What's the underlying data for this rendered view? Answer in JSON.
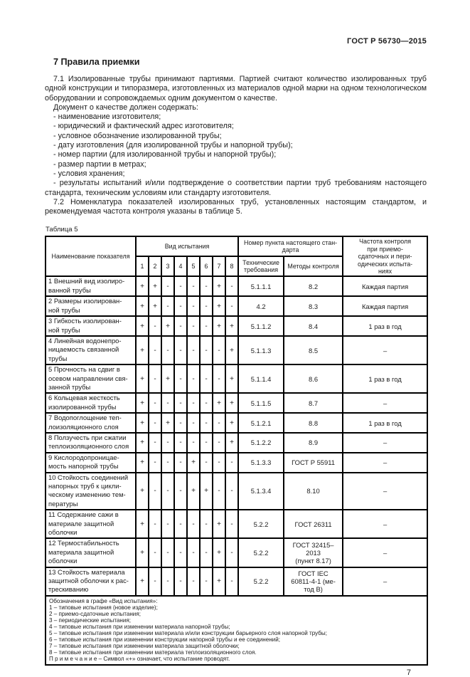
{
  "page": {
    "header_right": "ГОСТ Р 56730—2015",
    "page_number": "7"
  },
  "section": {
    "title": "7 Правила приемки",
    "para_71": "7.1 Изолированные трубы принимают партиями. Партией считают количество изолированных труб одной конструкции и типоразмера, изготовленных из материалов одной марки на одном технологическом оборудовании и сопровождаемых одним документом о качестве.",
    "doc_intro": "Документ о качестве должен содержать:",
    "doc_items": [
      "- наименование изготовителя;",
      "- юридический и фактический адрес изготовителя;",
      "- условное обозначение изолированной трубы;",
      "- дату изготовления (для изолированной трубы и напорной трубы);",
      "- номер партии (для изолированной трубы и напорной трубы);",
      "- размер партии в метрах;",
      "- условия хранения;",
      "- результаты испытаний и/или подтверждение о соответствии партии труб требованиям настоящего стандарта, техническим условиям или стандарту изготовителя."
    ],
    "para_72": "7.2 Номенклатура показателей изолированных труб, установленных настоящим стандартом, и рекомендуемая частота контроля указаны в таблице 5."
  },
  "table": {
    "caption": "Таблица 5",
    "headers": {
      "name": "Наименование показателя",
      "test_type": "Вид испытания",
      "test_numbers": [
        "1",
        "2",
        "3",
        "4",
        "5",
        "6",
        "7",
        "8"
      ],
      "clause_group": "Номер пункта настоящего стан-\nдарта",
      "tech_req": "Технические\nтребования",
      "methods": "Методы контроля",
      "frequency": "Частота контроля\nпри приемо-\nсдаточных и пери-\nодических испыта-\nниях"
    },
    "rows": [
      {
        "name": "1 Внешний вид изолиро-\nванной трубы",
        "marks": [
          "+",
          "+",
          "-",
          "-",
          "-",
          "-",
          "+",
          "-"
        ],
        "tech": "5.1.1.1",
        "method": "8.2",
        "freq": "Каждая партия"
      },
      {
        "name": "2 Размеры изолирован-\nной трубы",
        "marks": [
          "+",
          "+",
          "-",
          "-",
          "-",
          "-",
          "+",
          "-"
        ],
        "tech": "4.2",
        "method": "8.3",
        "freq": "Каждая партия"
      },
      {
        "name": "3 Гибкость изолирован-\nной трубы",
        "marks": [
          "+",
          "-",
          "+",
          "-",
          "-",
          "-",
          "+",
          "+"
        ],
        "tech": "5.1.1.2",
        "method": "8.4",
        "freq": "1 раз в год"
      },
      {
        "name": "4 Линейная водонепро-\nницаемость связанной\nтрубы",
        "marks": [
          "+",
          "-",
          "-",
          "-",
          "-",
          "-",
          "-",
          "+"
        ],
        "tech": "5.1.1.3",
        "method": "8.5",
        "freq": "–"
      },
      {
        "name": "5 Прочность на сдвиг в\nосевом направлении свя-\nзанной трубы",
        "marks": [
          "+",
          "-",
          "+",
          "-",
          "-",
          "-",
          "-",
          "+"
        ],
        "tech": "5.1.1.4",
        "method": "8.6",
        "freq": "1 раз в год"
      },
      {
        "name": "6 Кольцевая жесткость\nизолированной трубы",
        "marks": [
          "+",
          "-",
          "-",
          "-",
          "-",
          "-",
          "+",
          "+"
        ],
        "tech": "5.1.1.5",
        "method": "8.7",
        "freq": "–"
      },
      {
        "name": "7 Водопоглощение теп-\nлоизоляционного слоя",
        "marks": [
          "+",
          "-",
          "+",
          "-",
          "-",
          "-",
          "-",
          "+"
        ],
        "tech": "5.1.2.1",
        "method": "8.8",
        "freq": "1 раз в год"
      },
      {
        "name": "8 Ползучесть при сжатии\nтеплоизоляционного слоя",
        "marks": [
          "+",
          "-",
          "-",
          "-",
          "-",
          "-",
          "-",
          "+"
        ],
        "tech": "5.1.2.2",
        "method": "8.9",
        "freq": "–"
      },
      {
        "name": "9 Кислородопроницае-\nмость напорной трубы",
        "marks": [
          "+",
          "-",
          "-",
          "-",
          "+",
          "-",
          "-",
          "-"
        ],
        "tech": "5.1.3.3",
        "method": "ГОСТ Р 55911",
        "freq": "–"
      },
      {
        "name": "10 Стойкость соединений\nнапорных труб  к цикли-\nческому изменению тем-\nпературы",
        "marks": [
          "+",
          "-",
          "-",
          "-",
          "+",
          "+",
          "-",
          "-"
        ],
        "tech": "5.1.3.4",
        "method": "8.10",
        "freq": "–"
      },
      {
        "name": "11 Содержание сажи в\nматериале защитной\nоболочки",
        "marks": [
          "+",
          "-",
          "-",
          "-",
          "-",
          "-",
          "+",
          "-"
        ],
        "tech": "5.2.2",
        "method": "ГОСТ 26311",
        "freq": "–"
      },
      {
        "name": "12 Термостабильность\nматериала защитной\nоболочки",
        "marks": [
          "+",
          "-",
          "-",
          "-",
          "-",
          "-",
          "+",
          "-"
        ],
        "tech": "5.2.2",
        "method": "ГОСТ 32415–\n2013\n(пункт 8.17)",
        "freq": "–"
      },
      {
        "name": "13 Стойкость материала\nзащитной оболочки к рас-\nтрескиванию",
        "marks": [
          "+",
          "-",
          "-",
          "-",
          "-",
          "-",
          "+",
          "-"
        ],
        "tech": "5.2.2",
        "method": "ГОСТ IEC\n60811-4-1 (ме-\nтод В)",
        "freq": "–"
      }
    ],
    "footnotes": [
      "Обозначения в графе «Вид испытания»:",
      "1 – типовые испытания (новое изделие);",
      "2 – приемо-сдаточные испытания;",
      "3 – периодические испытания;",
      "4 – типовые испытания при изменении материала напорной трубы;",
      "5 – типовые испытания при изменении материала и/или конструкции барьерного слоя напорной трубы;",
      "6 – типовые испытания при изменении конструкции напорной трубы и ее соединений;",
      "7 – типовые испытания при изменении материала защитной оболочки;",
      "8 – типовые испытания при изменении материала теплоизоляционного слоя.",
      "П р и м е ч а н и е  –  Символ «+» означает, что испытание проводят."
    ]
  }
}
